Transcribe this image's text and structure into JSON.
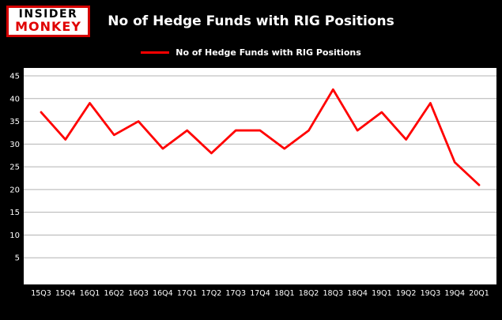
{
  "logo": {
    "line1": "INSIDER",
    "line2": "MONKEY"
  },
  "header": {
    "title": "No of Hedge Funds with RIG Positions"
  },
  "legend": {
    "label": "No of Hedge Funds with RIG Positions",
    "line_color": "#ff0000"
  },
  "chart_data": {
    "type": "line",
    "title": "No of Hedge Funds with RIG Positions",
    "categories": [
      "15Q3",
      "15Q4",
      "16Q1",
      "16Q2",
      "16Q3",
      "16Q4",
      "17Q1",
      "17Q2",
      "17Q3",
      "17Q4",
      "18Q1",
      "18Q2",
      "18Q3",
      "18Q4",
      "19Q1",
      "19Q2",
      "19Q3",
      "19Q4",
      "20Q1"
    ],
    "values": [
      37,
      31,
      39,
      32,
      35,
      29,
      33,
      28,
      33,
      33,
      29,
      33,
      42,
      33,
      37,
      31,
      39,
      26,
      21
    ],
    "xlabel": "",
    "ylabel": "",
    "ylim": [
      0,
      45
    ],
    "yticks": [
      5,
      10,
      15,
      20,
      25,
      30,
      35,
      40,
      45
    ],
    "grid": true,
    "legend_position": "top-center",
    "line_color": "#ff0000",
    "grid_color": "#b3b3b3",
    "plot_bg": "#ffffff",
    "page_bg": "#000000",
    "tick_label_color": "#ffffff"
  }
}
